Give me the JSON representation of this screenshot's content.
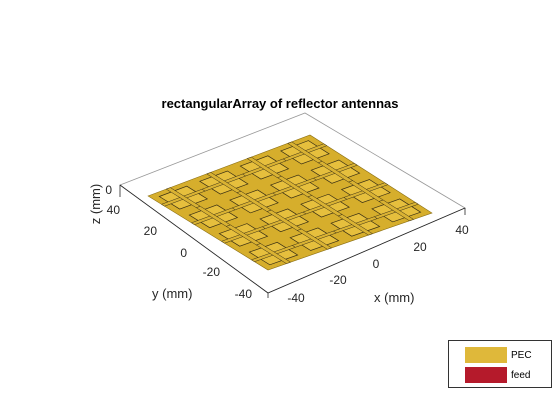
{
  "figure": {
    "title": "rectangularArray of reflector antennas",
    "xlabel": "x (mm)",
    "ylabel": "y (mm)",
    "zlabel": "z (mm)",
    "x_ticks": [
      "-40",
      "-20",
      "0",
      "20",
      "40"
    ],
    "y_ticks": [
      "40",
      "20",
      "0",
      "-20",
      "-40"
    ],
    "z_ticks": [
      "0"
    ],
    "legend": [
      {
        "label": "PEC",
        "color": "#dfb83a"
      },
      {
        "label": "feed",
        "color": "#b51a2b"
      }
    ],
    "grid": "4x4 array of patch elements on a ground plane"
  }
}
